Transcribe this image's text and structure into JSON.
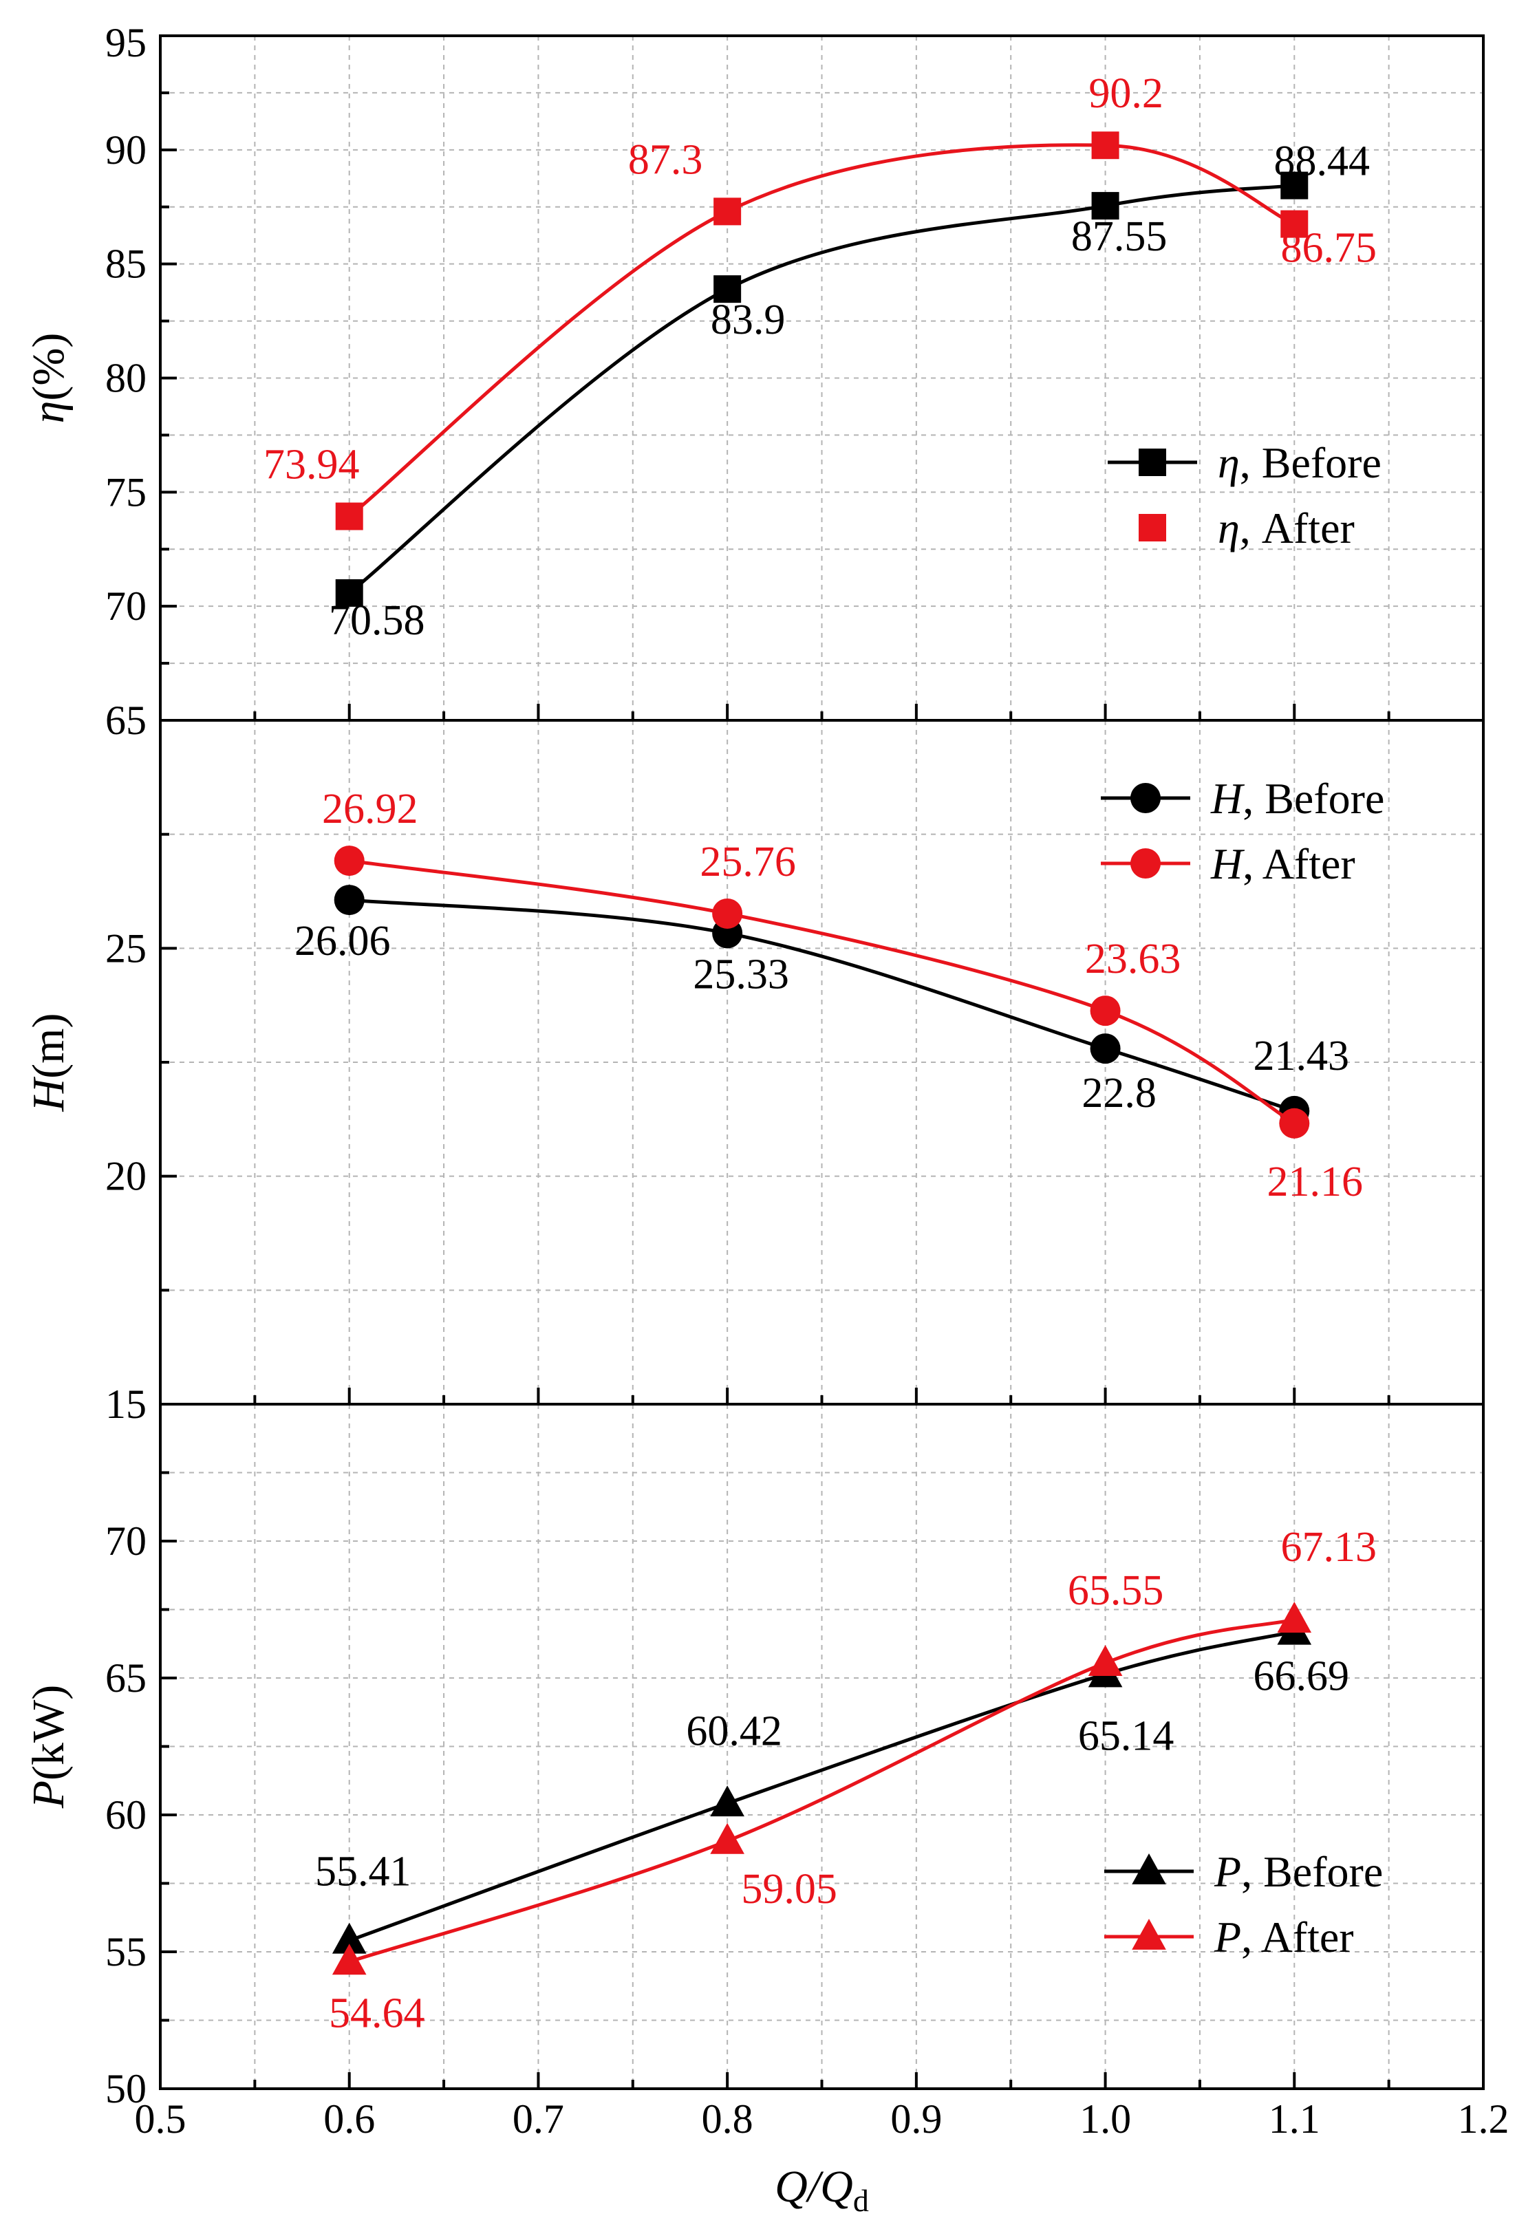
{
  "colors": {
    "before": "#000000",
    "after": "#e8141c",
    "grid": "#b4b4b4",
    "axis": "#000000"
  },
  "x_axis": {
    "label_main": "Q/Q",
    "label_sub": "d",
    "ticks": [
      "0.5",
      "0.6",
      "0.7",
      "0.8",
      "0.9",
      "1.0",
      "1.1",
      "1.2"
    ],
    "range": [
      0.5,
      1.2
    ]
  },
  "chart_data": [
    {
      "id": "efficiency",
      "type": "line",
      "ylabel_symbol": "η",
      "ylabel_unit": "(%)",
      "ylim": [
        65,
        95
      ],
      "yticks": [
        "95",
        "90",
        "85",
        "80",
        "75",
        "70",
        "65"
      ],
      "x": [
        0.6,
        0.8,
        1.0,
        1.1
      ],
      "series": [
        {
          "name": "Before",
          "legend_symbol": "η",
          "legend_text": ", Before",
          "marker": "square",
          "values": [
            70.58,
            83.9,
            87.55,
            88.44
          ],
          "labels": [
            "70.58",
            "83.9",
            "87.55",
            "88.44"
          ]
        },
        {
          "name": "After",
          "legend_symbol": "η",
          "legend_text": ", After",
          "marker": "square",
          "values": [
            73.94,
            87.3,
            90.2,
            86.75
          ],
          "labels": [
            "73.94",
            "87.3",
            "90.2",
            "86.75"
          ]
        }
      ]
    },
    {
      "id": "head",
      "type": "line",
      "ylabel_symbol": "H",
      "ylabel_unit": "(m)",
      "ylim": [
        15,
        30
      ],
      "yticks": [
        "25",
        "20",
        "15"
      ],
      "x": [
        0.6,
        0.8,
        1.0,
        1.1
      ],
      "series": [
        {
          "name": "Before",
          "legend_symbol": "H",
          "legend_text": ", Before",
          "marker": "circle",
          "values": [
            26.06,
            25.33,
            22.8,
            21.43
          ],
          "labels": [
            "26.06",
            "25.33",
            "22.8",
            "21.43"
          ]
        },
        {
          "name": "After",
          "legend_symbol": "H",
          "legend_text": ", After",
          "marker": "circle",
          "values": [
            26.92,
            25.76,
            23.63,
            21.16
          ],
          "labels": [
            "26.92",
            "25.76",
            "23.63",
            "21.16"
          ]
        }
      ]
    },
    {
      "id": "power",
      "type": "line",
      "ylabel_symbol": "P",
      "ylabel_unit": "(kW)",
      "ylim": [
        50,
        75
      ],
      "yticks": [
        "70",
        "65",
        "60",
        "55",
        "50"
      ],
      "x": [
        0.6,
        0.8,
        1.0,
        1.1
      ],
      "series": [
        {
          "name": "Before",
          "legend_symbol": "P",
          "legend_text": ", Before",
          "marker": "triangle",
          "values": [
            55.41,
            60.42,
            65.14,
            66.69
          ],
          "labels": [
            "55.41",
            "60.42",
            "65.14",
            "66.69"
          ]
        },
        {
          "name": "After",
          "legend_symbol": "P",
          "legend_text": ", After",
          "marker": "triangle",
          "values": [
            54.64,
            59.05,
            65.55,
            67.13
          ],
          "labels": [
            "54.64",
            "59.05",
            "65.55",
            "67.13"
          ]
        }
      ]
    }
  ]
}
